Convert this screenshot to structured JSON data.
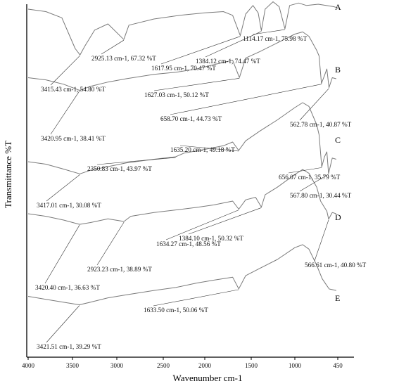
{
  "chart_data": {
    "type": "line",
    "xlabel": "Wavenumber cm-1",
    "ylabel": "Transmittance %T",
    "xlim": [
      4000,
      400
    ],
    "x_ticks": [
      4000,
      3500,
      3000,
      2500,
      2000,
      1500,
      1000,
      450
    ],
    "x_tick_labels": [
      "4000",
      "3500",
      "3000",
      "2500",
      "2000",
      "1500",
      "1000",
      "450"
    ],
    "x_ticks_reversed": true,
    "grid": false,
    "legend": "none",
    "line_color": "#7a7a7a",
    "series": [
      {
        "name": "A",
        "points": [
          [
            4000,
            92
          ],
          [
            3800,
            90
          ],
          [
            3620,
            85
          ],
          [
            3530,
            70
          ],
          [
            3470,
            60
          ],
          [
            3415,
            54.8
          ],
          [
            3360,
            62
          ],
          [
            3250,
            75
          ],
          [
            3100,
            80
          ],
          [
            2925,
            67.3
          ],
          [
            2870,
            79
          ],
          [
            2600,
            84
          ],
          [
            2300,
            87
          ],
          [
            2000,
            89
          ],
          [
            1800,
            90
          ],
          [
            1700,
            87
          ],
          [
            1618,
            70.5
          ],
          [
            1560,
            88
          ],
          [
            1480,
            95
          ],
          [
            1420,
            89
          ],
          [
            1384,
            74.5
          ],
          [
            1340,
            92
          ],
          [
            1250,
            98
          ],
          [
            1180,
            94
          ],
          [
            1114,
            76
          ],
          [
            1060,
            95
          ],
          [
            950,
            97
          ],
          [
            850,
            95
          ],
          [
            700,
            96
          ],
          [
            600,
            95
          ],
          [
            500,
            94
          ],
          [
            450,
            93
          ]
        ],
        "annotations": [
          {
            "x": 3415.43,
            "y": 54.8,
            "label": "3415.43 cm-1, 54.80 %T"
          },
          {
            "x": 2925.13,
            "y": 67.32,
            "label": "2925.13 cm-1, 67.32 %T"
          },
          {
            "x": 1617.95,
            "y": 70.47,
            "label": "1617.95 cm-1, 70.47 %T"
          },
          {
            "x": 1384.12,
            "y": 74.47,
            "label": "1384.12 cm-1, 74.47 %T"
          },
          {
            "x": 1114.17,
            "y": 75.98,
            "label": "1114.17 cm-1, 75.98 %T"
          }
        ]
      },
      {
        "name": "B",
        "points": [
          [
            4000,
            50
          ],
          [
            3800,
            48
          ],
          [
            3600,
            44
          ],
          [
            3420,
            38.4
          ],
          [
            3300,
            42
          ],
          [
            3100,
            46
          ],
          [
            2900,
            49
          ],
          [
            2600,
            53
          ],
          [
            2350,
            55
          ],
          [
            2100,
            58
          ],
          [
            1900,
            62
          ],
          [
            1700,
            66
          ],
          [
            1627,
            50.1
          ],
          [
            1560,
            68
          ],
          [
            1400,
            74
          ],
          [
            1200,
            82
          ],
          [
            1000,
            90
          ],
          [
            900,
            92
          ],
          [
            820,
            88
          ],
          [
            720,
            75
          ],
          [
            690,
            70
          ],
          [
            659,
            44.7
          ],
          [
            620,
            52
          ],
          [
            590,
            58
          ],
          [
            563,
            40.9
          ],
          [
            520,
            50
          ],
          [
            470,
            49
          ]
        ],
        "annotations": [
          {
            "x": 3420.95,
            "y": 38.41,
            "label": "3420.95 cm-1, 38.41 %T"
          },
          {
            "x": 1627.03,
            "y": 50.12,
            "label": "1627.03 cm-1, 50.12 %T"
          },
          {
            "x": 658.7,
            "y": 44.73,
            "label": "658.70 cm-1, 44.73 %T"
          },
          {
            "x": 562.78,
            "y": 40.87,
            "label": "562.78 cm-1, 40.87 %T"
          }
        ]
      },
      {
        "name": "C",
        "points": [
          [
            4000,
            40
          ],
          [
            3800,
            38
          ],
          [
            3600,
            34
          ],
          [
            3417,
            30.1
          ],
          [
            3300,
            33
          ],
          [
            3100,
            36
          ],
          [
            2900,
            39
          ],
          [
            2600,
            42
          ],
          [
            2351,
            44
          ],
          [
            2250,
            47
          ],
          [
            2000,
            50
          ],
          [
            1800,
            53
          ],
          [
            1700,
            56
          ],
          [
            1635,
            49.2
          ],
          [
            1560,
            57
          ],
          [
            1400,
            65
          ],
          [
            1200,
            74
          ],
          [
            1000,
            84
          ],
          [
            900,
            88
          ],
          [
            820,
            85
          ],
          [
            720,
            70
          ],
          [
            690,
            62
          ],
          [
            656,
            35.8
          ],
          [
            620,
            44
          ],
          [
            590,
            48
          ],
          [
            568,
            30.4
          ],
          [
            520,
            43
          ],
          [
            470,
            42
          ]
        ],
        "annotations": [
          {
            "x": 3417.01,
            "y": 30.08,
            "label": "3417.01 cm-1, 30.08 %T"
          },
          {
            "x": 2350.83,
            "y": 43.97,
            "label": "2350.83 cm-1, 43.97 %T"
          },
          {
            "x": 1635.2,
            "y": 49.18,
            "label": "1635.20 cm-1, 49.18 %T"
          },
          {
            "x": 656.07,
            "y": 35.79,
            "label": "656.07 cm-1, 35.79 %T"
          },
          {
            "x": 567.8,
            "y": 30.44,
            "label": "567.80 cm-1, 30.44 %T"
          }
        ]
      },
      {
        "name": "D",
        "points": [
          [
            4000,
            45
          ],
          [
            3800,
            43
          ],
          [
            3600,
            40
          ],
          [
            3420,
            36.6
          ],
          [
            3300,
            38
          ],
          [
            3100,
            41
          ],
          [
            2923,
            38.9
          ],
          [
            2850,
            43
          ],
          [
            2600,
            46
          ],
          [
            2350,
            48
          ],
          [
            2100,
            50
          ],
          [
            1900,
            52
          ],
          [
            1700,
            55
          ],
          [
            1634,
            48.6
          ],
          [
            1560,
            56
          ],
          [
            1450,
            58
          ],
          [
            1384,
            50.3
          ],
          [
            1340,
            60
          ],
          [
            1200,
            66
          ],
          [
            1000,
            76
          ],
          [
            900,
            80
          ],
          [
            820,
            77
          ],
          [
            720,
            66
          ],
          [
            670,
            55
          ],
          [
            620,
            50
          ],
          [
            590,
            47
          ],
          [
            567,
            40.8
          ],
          [
            520,
            46
          ],
          [
            470,
            45
          ]
        ],
        "annotations": [
          {
            "x": 3420.4,
            "y": 36.63,
            "label": "3420.40 cm-1, 36.63 %T"
          },
          {
            "x": 2923.23,
            "y": 38.89,
            "label": "2923.23 cm-1, 38.89 %T"
          },
          {
            "x": 1634.27,
            "y": 48.56,
            "label": "1634.27 cm-1, 48.56 %T"
          },
          {
            "x": 1384.1,
            "y": 50.32,
            "label": "1384.10 cm-1, 50.32 %T"
          },
          {
            "x": 566.61,
            "y": 40.8,
            "label": "566.61 cm-1, 40.80 %T"
          }
        ]
      },
      {
        "name": "E",
        "points": [
          [
            4000,
            45
          ],
          [
            3800,
            43
          ],
          [
            3600,
            41
          ],
          [
            3422,
            39.3
          ],
          [
            3300,
            41
          ],
          [
            3100,
            44
          ],
          [
            2900,
            46
          ],
          [
            2600,
            49
          ],
          [
            2350,
            51
          ],
          [
            2100,
            54
          ],
          [
            1900,
            56
          ],
          [
            1700,
            58
          ],
          [
            1634,
            50.1
          ],
          [
            1560,
            59
          ],
          [
            1400,
            64
          ],
          [
            1200,
            70
          ],
          [
            1000,
            78
          ],
          [
            900,
            80
          ],
          [
            820,
            77
          ],
          [
            720,
            66
          ],
          [
            650,
            57
          ],
          [
            600,
            53
          ],
          [
            560,
            50
          ],
          [
            470,
            49
          ]
        ],
        "annotations": [
          {
            "x": 3421.51,
            "y": 39.29,
            "label": "3421.51 cm-1, 39.29 %T"
          },
          {
            "x": 1633.5,
            "y": 50.06,
            "label": "1633.50 cm-1, 50.06 %T"
          }
        ]
      }
    ]
  }
}
